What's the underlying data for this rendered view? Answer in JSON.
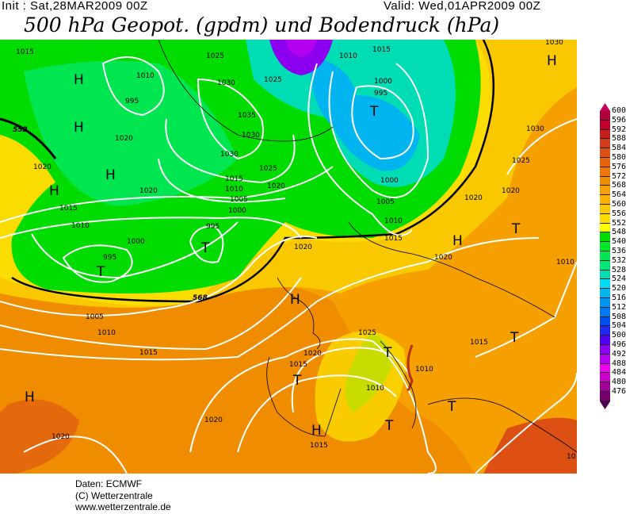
{
  "header": {
    "init": "Init : Sat,28MAR2009 00Z",
    "valid": "Valid: Wed,01APR2009 00Z",
    "title": "500 hPa Geopot. (gpdm) und Bodendruck (hPa)"
  },
  "legend": {
    "labels": [
      "600",
      "596",
      "592",
      "588",
      "584",
      "580",
      "576",
      "572",
      "568",
      "564",
      "560",
      "556",
      "552",
      "548",
      "540",
      "536",
      "532",
      "528",
      "524",
      "520",
      "516",
      "512",
      "508",
      "504",
      "500",
      "496",
      "492",
      "488",
      "484",
      "480",
      "476"
    ],
    "colors": [
      "#b0003a",
      "#c00028",
      "#c81e1e",
      "#d03c1e",
      "#dc5014",
      "#e6640a",
      "#f07800",
      "#f08c00",
      "#f5a000",
      "#fab400",
      "#fac800",
      "#fadc00",
      "#ffff00",
      "#00dc00",
      "#00e628",
      "#00e650",
      "#00e678",
      "#00dcb4",
      "#00dcf0",
      "#00b4f0",
      "#0096f0",
      "#0078f0",
      "#0050f0",
      "#1e28f0",
      "#5000f0",
      "#8c00f0",
      "#b400f0",
      "#f000f0",
      "#c800c8",
      "#a00096",
      "#78006e"
    ]
  },
  "map": {
    "isobar_labels": [
      "1015",
      "1010",
      "1025",
      "1010",
      "1015",
      "1030",
      "995",
      "1030",
      "1025",
      "1000",
      "995",
      "1035",
      "1030",
      "1020",
      "1030",
      "1025",
      "1020",
      "1020",
      "1015",
      "1010",
      "1005",
      "1020",
      "1000",
      "1000",
      "1005",
      "1010",
      "1015",
      "1020",
      "1020",
      "1025",
      "1030",
      "1015",
      "1010",
      "1000",
      "995",
      "995",
      "1020",
      "1020",
      "1010",
      "1005",
      "1010",
      "1015",
      "1020",
      "1015",
      "1015",
      "1025",
      "1010",
      "1010",
      "1020",
      "1020",
      "1015",
      "10"
    ],
    "highs": [
      "H",
      "H",
      "H",
      "H",
      "H",
      "H",
      "H",
      "H",
      "H"
    ],
    "lows": [
      "T",
      "T",
      "T",
      "T",
      "T",
      "T",
      "T",
      "T",
      "T"
    ],
    "contour_labels": [
      "552",
      "568"
    ]
  },
  "footer": {
    "line1": "Daten: ECMWF",
    "line2": "(C) Wetterzentrale",
    "line3": "www.wetterzentrale.de"
  }
}
